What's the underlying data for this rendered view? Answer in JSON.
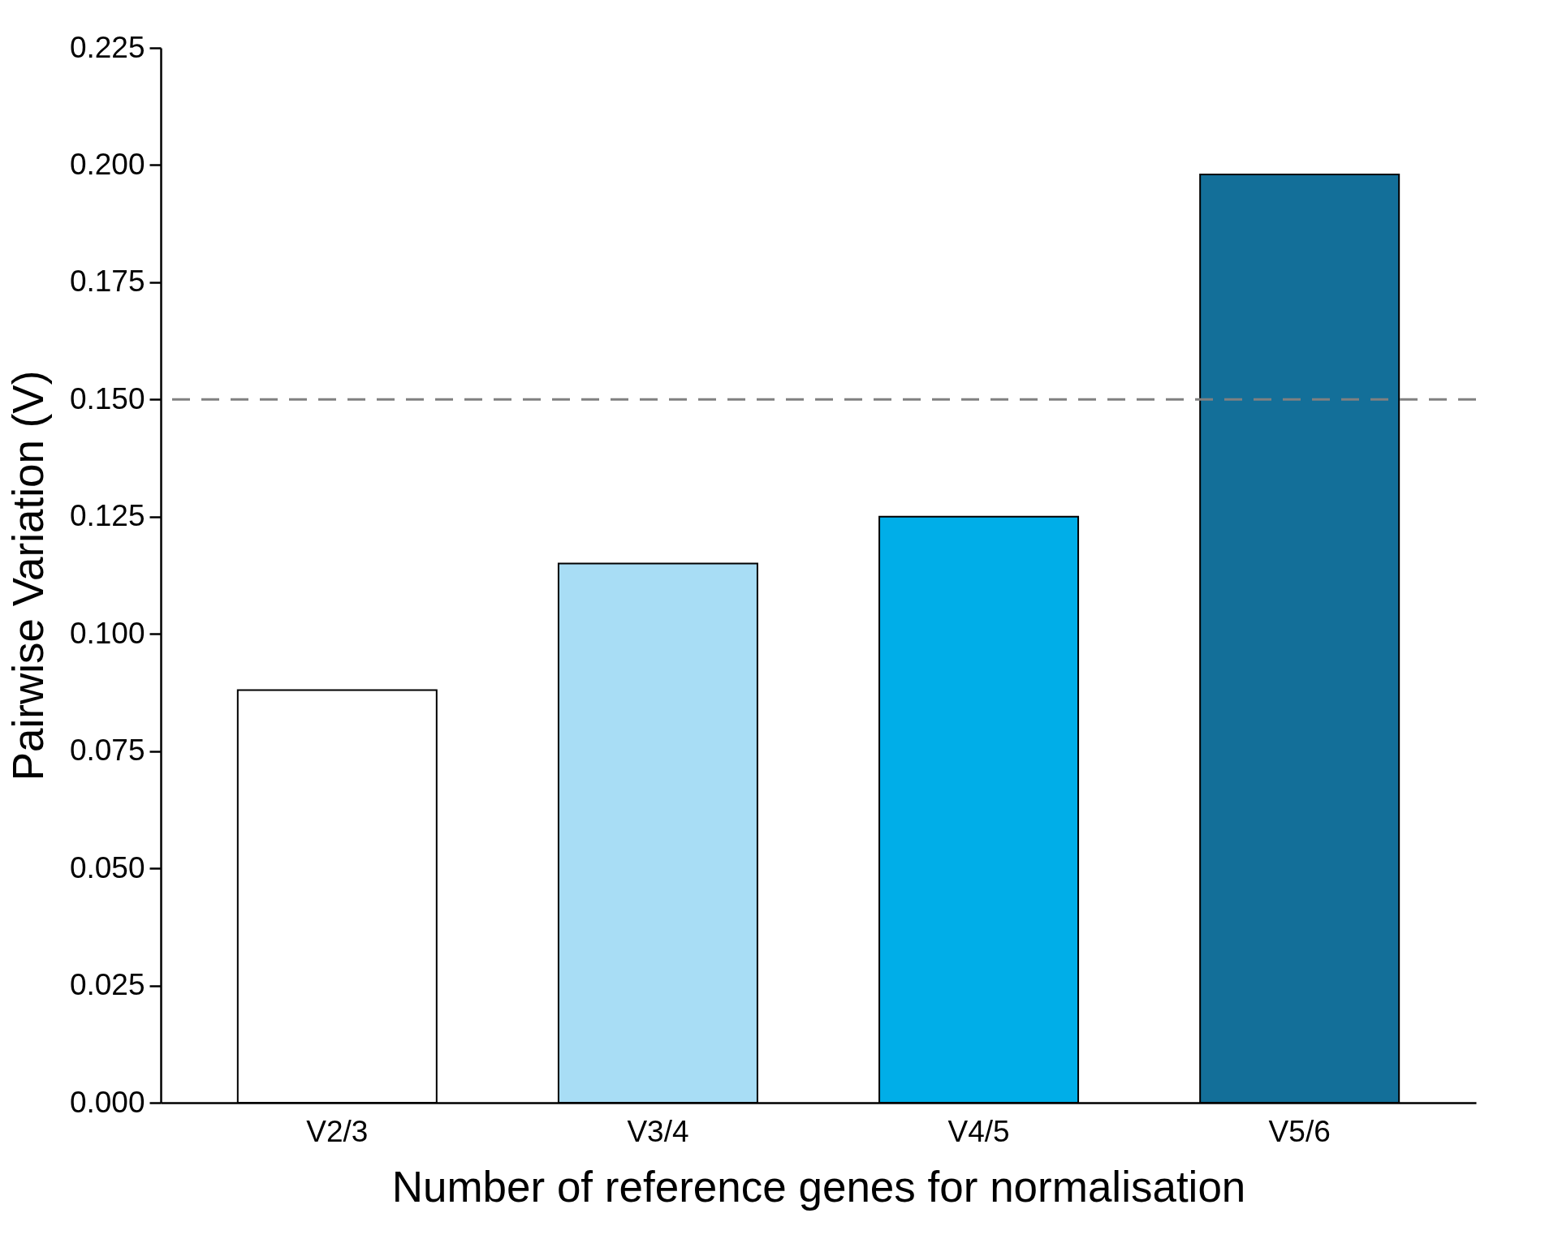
{
  "chart_data": {
    "type": "bar",
    "xlabel": "Number of reference genes for normalisation",
    "ylabel": "Pairwise Variation (V)",
    "categories": [
      "V2/3",
      "V3/4",
      "V4/5",
      "V5/6"
    ],
    "values": [
      0.088,
      0.115,
      0.125,
      0.198
    ],
    "colors": [
      "#ffffff",
      "#a8ddf5",
      "#00aee8",
      "#136f99"
    ],
    "ylim": [
      0,
      0.225
    ],
    "yticks": [
      {
        "value": 0,
        "label": "0.000"
      },
      {
        "value": 0.025,
        "label": "0.025"
      },
      {
        "value": 0.05,
        "label": "0.050"
      },
      {
        "value": 0.075,
        "label": "0.075"
      },
      {
        "value": 0.1,
        "label": "0.100"
      },
      {
        "value": 0.125,
        "label": "0.125"
      },
      {
        "value": 0.15,
        "label": "0.150"
      },
      {
        "value": 0.175,
        "label": "0.175"
      },
      {
        "value": 0.2,
        "label": "0.200"
      },
      {
        "value": 0.225,
        "label": "0.225"
      }
    ],
    "ref_lines": [
      {
        "axis": "y",
        "value": 0.15,
        "color": "#808080",
        "line_style": "dashed"
      }
    ],
    "grid": false,
    "legend": false
  }
}
